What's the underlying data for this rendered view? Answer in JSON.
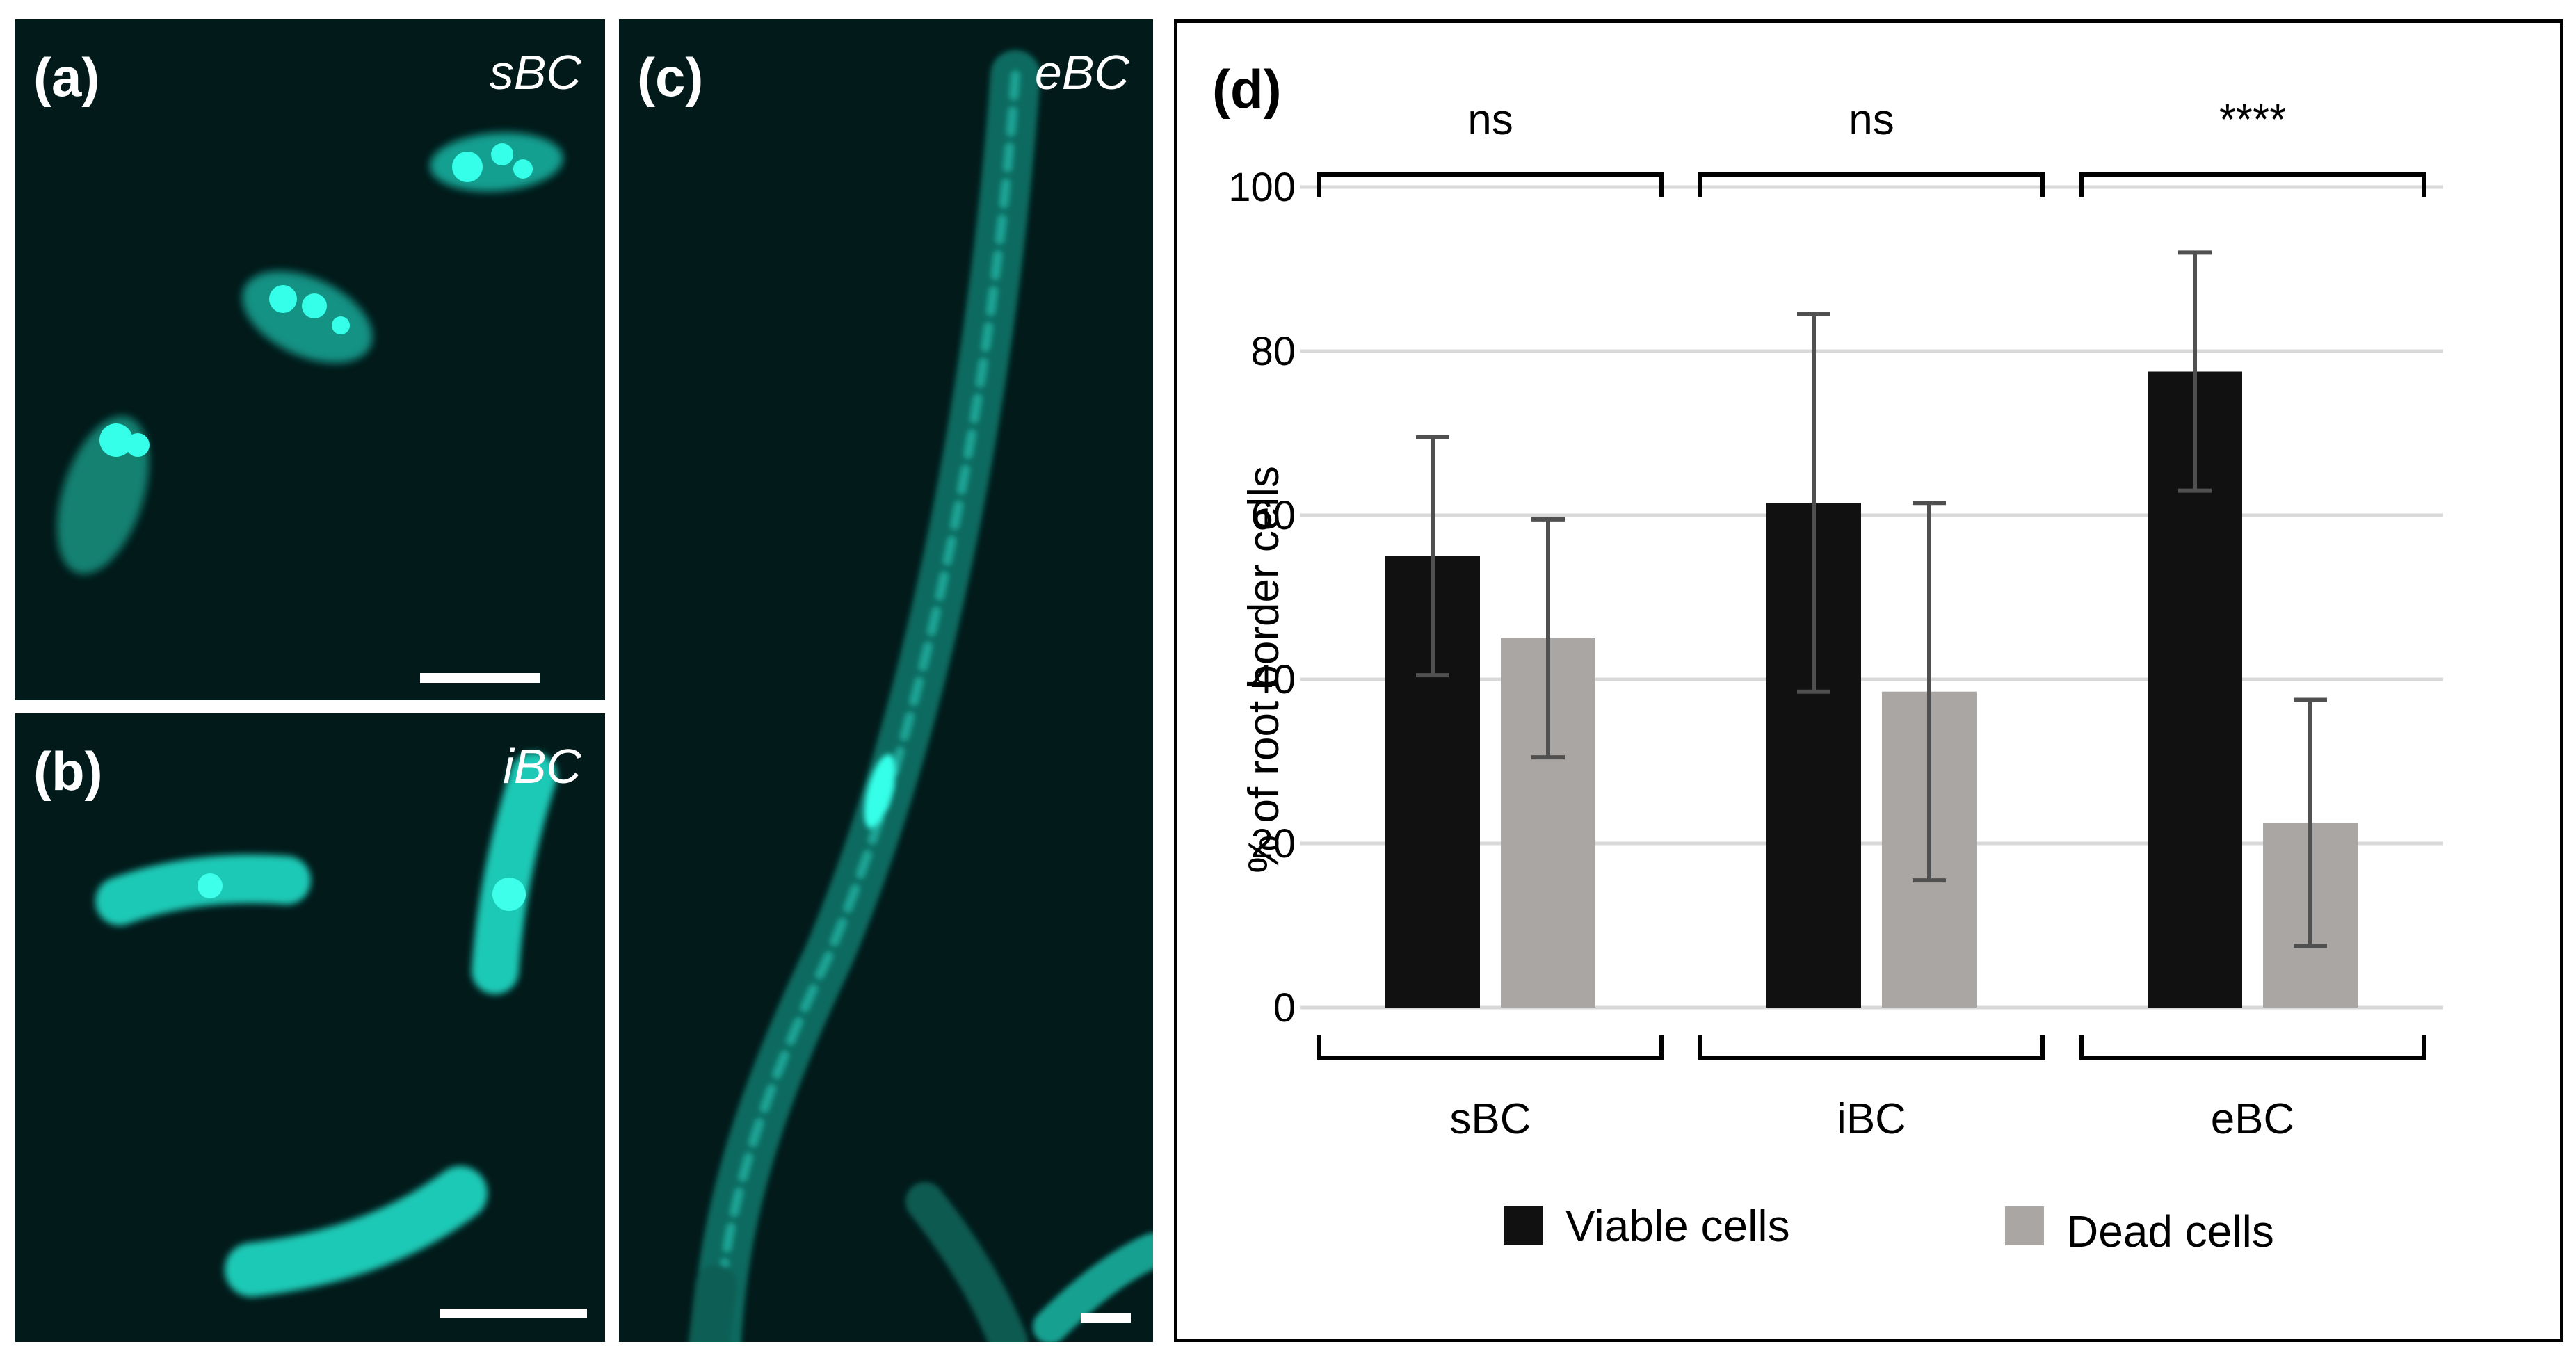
{
  "panels": {
    "a": {
      "label": "(a)",
      "sublabel": "sBC"
    },
    "b": {
      "label": "(b)",
      "sublabel": "iBC"
    },
    "c": {
      "label": "(c)",
      "sublabel": "eBC"
    },
    "d": {
      "label": "(d)"
    }
  },
  "colors": {
    "viable": "#111111",
    "dead": "#a9a6a3",
    "fluorescence": "#23e0cc",
    "background": "#021a1a"
  },
  "chart_data": {
    "type": "bar",
    "categories": [
      "sBC",
      "iBC",
      "eBC"
    ],
    "ylabel": "% of root border cells",
    "ylim": [
      0,
      100
    ],
    "yticks": [
      0,
      20,
      40,
      60,
      80,
      100
    ],
    "grid": true,
    "legend_position": "bottom",
    "series": [
      {
        "name": "Viable cells",
        "values": [
          55,
          61.5,
          77.5
        ],
        "errors": [
          14.5,
          23,
          14.5
        ]
      },
      {
        "name": "Dead cells",
        "values": [
          45,
          38.5,
          22.5
        ],
        "errors": [
          14.5,
          23,
          15
        ]
      }
    ],
    "significance": [
      "ns",
      "ns",
      "****"
    ]
  }
}
